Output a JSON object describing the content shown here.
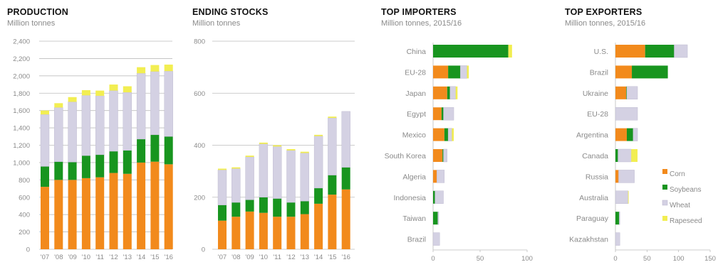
{
  "colors": {
    "corn": "#f28a1c",
    "soybeans": "#18951f",
    "wheat": "#d4d1e3",
    "rapeseed": "#f2ee52",
    "grid": "#bdbdbd"
  },
  "chart_data": [
    {
      "id": "production",
      "type": "bar",
      "stacked": true,
      "title": "PRODUCTION",
      "subtitle": "Million tonnes",
      "categories": [
        "'07",
        "'08",
        "'09",
        "'10",
        "'11",
        "'12",
        "'13",
        "'14",
        "'15",
        "'16"
      ],
      "yticks": [
        0,
        200,
        400,
        600,
        800,
        "1,000",
        "1,200",
        "1,400",
        "1,600",
        "1,800",
        "2,000",
        "2,200",
        "2,400"
      ],
      "ylim": [
        0,
        2400
      ],
      "series": [
        {
          "key": "corn",
          "values": [
            720,
            800,
            800,
            820,
            830,
            880,
            870,
            1000,
            1010,
            980
          ]
        },
        {
          "key": "soybeans",
          "values": [
            235,
            210,
            205,
            260,
            260,
            250,
            270,
            270,
            310,
            320
          ]
        },
        {
          "key": "wheat",
          "values": [
            600,
            625,
            695,
            695,
            680,
            700,
            670,
            760,
            730,
            755
          ]
        },
        {
          "key": "rapeseed",
          "values": [
            45,
            50,
            55,
            60,
            60,
            70,
            70,
            70,
            75,
            75
          ]
        }
      ]
    },
    {
      "id": "ending_stocks",
      "type": "bar",
      "stacked": true,
      "title": "ENDING STOCKS",
      "subtitle": "Million tonnes",
      "categories": [
        "'07",
        "'08",
        "'09",
        "'10",
        "'11",
        "'12",
        "'13",
        "'14",
        "'15",
        "'16"
      ],
      "yticks": [
        0,
        200,
        400,
        600,
        800
      ],
      "ylim": [
        0,
        800
      ],
      "series": [
        {
          "key": "corn",
          "values": [
            110,
            125,
            145,
            140,
            125,
            125,
            135,
            175,
            210,
            230
          ]
        },
        {
          "key": "soybeans",
          "values": [
            60,
            55,
            45,
            60,
            70,
            55,
            50,
            60,
            75,
            85
          ]
        },
        {
          "key": "wheat",
          "values": [
            135,
            130,
            165,
            205,
            200,
            200,
            185,
            200,
            220,
            215
          ]
        },
        {
          "key": "rapeseed",
          "values": [
            5,
            5,
            5,
            5,
            5,
            5,
            5,
            5,
            5,
            0
          ]
        }
      ]
    },
    {
      "id": "top_importers",
      "type": "bar",
      "orientation": "horizontal",
      "stacked": true,
      "title": "TOP IMPORTERS",
      "subtitle": "Million tonnes, 2015/16",
      "categories": [
        "China",
        "EU-28",
        "Japan",
        "Egypt",
        "Mexico",
        "South Korea",
        "Algeria",
        "Indonesia",
        "Taiwan",
        "Brazil"
      ],
      "xticks": [
        0,
        50,
        100
      ],
      "xlim": [
        0,
        100
      ],
      "series": [
        {
          "key": "corn",
          "values": [
            0,
            16,
            15,
            9,
            12,
            10,
            4,
            0,
            0,
            0
          ]
        },
        {
          "key": "soybeans",
          "values": [
            80,
            13,
            3,
            2,
            4,
            1,
            0,
            2,
            5,
            0
          ]
        },
        {
          "key": "wheat",
          "values": [
            0,
            7,
            6,
            11,
            4,
            4,
            8,
            9,
            1,
            7
          ]
        },
        {
          "key": "rapeseed",
          "values": [
            4,
            2,
            2,
            0,
            2,
            0,
            0,
            0,
            0,
            0
          ]
        }
      ]
    },
    {
      "id": "top_exporters",
      "type": "bar",
      "orientation": "horizontal",
      "stacked": true,
      "title": "TOP EXPORTERS",
      "subtitle": "Million tonnes, 2015/16",
      "categories": [
        "U.S.",
        "Brazil",
        "Ukraine",
        "EU-28",
        "Argentina",
        "Canada",
        "Russia",
        "Australia",
        "Paraguay",
        "Kazakhstan"
      ],
      "xticks": [
        0,
        50,
        100,
        150
      ],
      "xlim": [
        0,
        150
      ],
      "series": [
        {
          "key": "corn",
          "values": [
            47,
            26,
            17,
            0,
            18,
            0,
            5,
            0,
            0,
            0
          ]
        },
        {
          "key": "soybeans",
          "values": [
            46,
            57,
            1,
            0,
            10,
            4,
            0,
            0,
            6,
            0
          ]
        },
        {
          "key": "wheat",
          "values": [
            21,
            0,
            17,
            35,
            7,
            21,
            25,
            20,
            1,
            7
          ]
        },
        {
          "key": "rapeseed",
          "values": [
            0,
            0,
            0,
            0,
            0,
            10,
            0,
            1,
            0,
            0
          ]
        }
      ]
    }
  ],
  "legend": [
    {
      "key": "corn",
      "label": "Corn"
    },
    {
      "key": "soybeans",
      "label": "Soybeans"
    },
    {
      "key": "wheat",
      "label": "Wheat"
    },
    {
      "key": "rapeseed",
      "label": "Rapeseed"
    }
  ]
}
